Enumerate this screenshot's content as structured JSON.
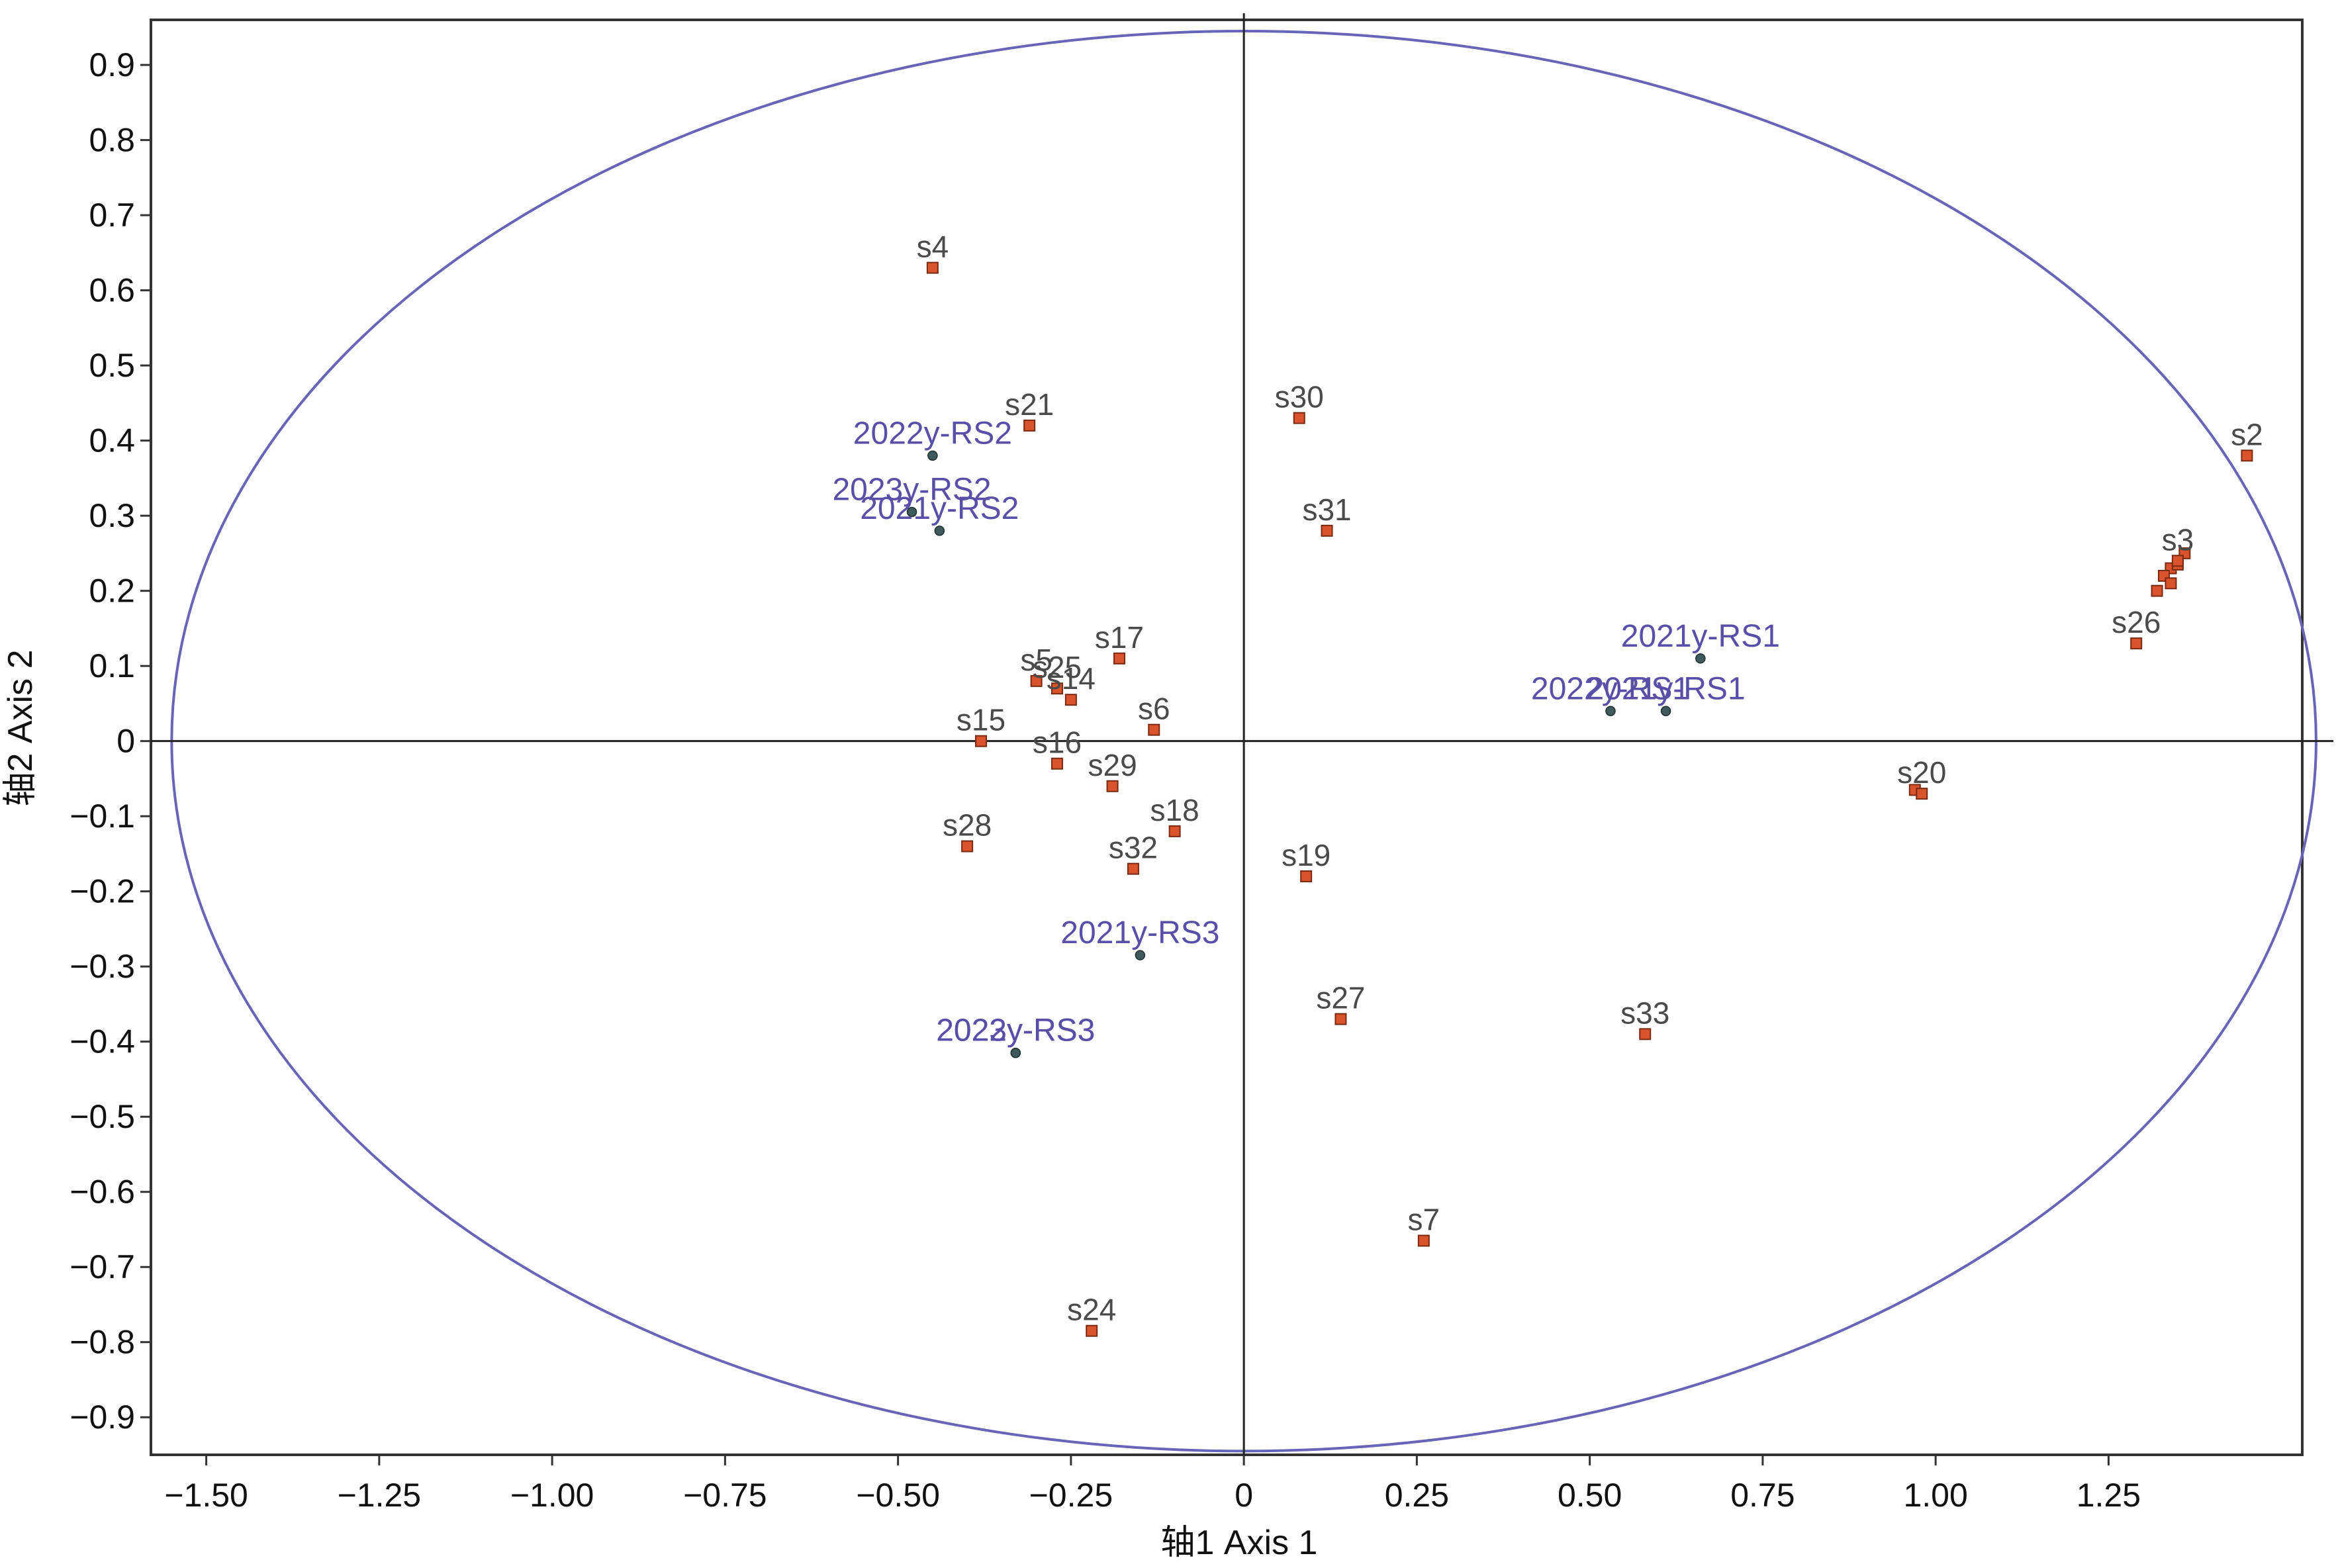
{
  "chart_data": {
    "type": "scatter",
    "title": "",
    "xlabel": "轴1 Axis 1",
    "ylabel": "轴2 Axis 2",
    "xlim": [
      -1.58,
      1.53
    ],
    "ylim": [
      -0.95,
      0.96
    ],
    "xticks": [
      -1.5,
      -1.25,
      -1.0,
      -0.75,
      -0.5,
      -0.25,
      0,
      0.25,
      0.5,
      0.75,
      1.0,
      1.25
    ],
    "xtick_labels": [
      "−1.50",
      "−1.25",
      "−1.00",
      "−0.75",
      "−0.50",
      "−0.25",
      "0",
      "0.25",
      "0.50",
      "0.75",
      "1.00",
      "1.25"
    ],
    "yticks": [
      0.9,
      0.8,
      0.7,
      0.6,
      0.5,
      0.4,
      0.3,
      0.2,
      0.1,
      0,
      -0.1,
      -0.2,
      -0.3,
      -0.4,
      -0.5,
      -0.6,
      -0.7,
      -0.8,
      -0.9
    ],
    "ytick_labels": [
      "0.9",
      "0.8",
      "0.7",
      "0.6",
      "0.5",
      "0.4",
      "0.3",
      "0.2",
      "0.1",
      "0",
      "−0.1",
      "−0.2",
      "−0.3",
      "−0.4",
      "−0.5",
      "−0.6",
      "−0.7",
      "−0.8",
      "−0.9"
    ],
    "grid": false,
    "ellipse": {
      "cx": 0,
      "cy": 0,
      "rx": 1.55,
      "ry": 0.945
    },
    "colors": {
      "sample_marker": "#d9532c",
      "sample_stroke": "#7a2a12",
      "variable_marker": "#3e5a5a",
      "variable_label": "#5a4fa8",
      "ellipse": "#6a64b8",
      "axis": "#222222"
    },
    "samples": [
      {
        "label": "s2",
        "x": 1.45,
        "y": 0.38
      },
      {
        "label": "s3",
        "x": 1.35,
        "y": 0.24
      },
      {
        "label": "s26",
        "x": 1.29,
        "y": 0.13
      },
      {
        "label": "s4",
        "x": -0.45,
        "y": 0.63
      },
      {
        "label": "s21",
        "x": -0.31,
        "y": 0.42
      },
      {
        "label": "s30",
        "x": 0.08,
        "y": 0.43
      },
      {
        "label": "s31",
        "x": 0.12,
        "y": 0.28
      },
      {
        "label": "s17",
        "x": -0.18,
        "y": 0.11
      },
      {
        "label": "s5",
        "x": -0.3,
        "y": 0.08
      },
      {
        "label": "s25",
        "x": -0.27,
        "y": 0.07
      },
      {
        "label": "s14",
        "x": -0.25,
        "y": 0.055
      },
      {
        "label": "s6",
        "x": -0.13,
        "y": 0.015
      },
      {
        "label": "s15",
        "x": -0.38,
        "y": 0.0
      },
      {
        "label": "s16",
        "x": -0.27,
        "y": -0.03
      },
      {
        "label": "s29",
        "x": -0.19,
        "y": -0.06
      },
      {
        "label": "s18",
        "x": -0.1,
        "y": -0.12
      },
      {
        "label": "s32",
        "x": -0.16,
        "y": -0.17
      },
      {
        "label": "s28",
        "x": -0.4,
        "y": -0.14
      },
      {
        "label": "s19",
        "x": 0.09,
        "y": -0.18
      },
      {
        "label": "s27",
        "x": 0.14,
        "y": -0.37
      },
      {
        "label": "s33",
        "x": 0.58,
        "y": -0.39
      },
      {
        "label": "s7",
        "x": 0.26,
        "y": -0.665
      },
      {
        "label": "s24",
        "x": -0.22,
        "y": -0.785
      },
      {
        "label": "s20",
        "x": 0.98,
        "y": -0.07
      }
    ],
    "cluster_extra_points": [
      {
        "x": 1.34,
        "y": 0.23
      },
      {
        "x": 1.36,
        "y": 0.25
      },
      {
        "x": 1.33,
        "y": 0.22
      },
      {
        "x": 1.34,
        "y": 0.21
      },
      {
        "x": 1.35,
        "y": 0.235
      },
      {
        "x": 1.32,
        "y": 0.2
      },
      {
        "x": 0.97,
        "y": -0.065
      }
    ],
    "variables": [
      {
        "label": "2021y-RS1",
        "x": 0.66,
        "y": 0.11
      },
      {
        "label": "2022y-RS1",
        "x": 0.53,
        "y": 0.04
      },
      {
        "label": "2021y-RS1",
        "x": 0.61,
        "y": 0.04
      },
      {
        "label": "2022y-RS2",
        "x": -0.45,
        "y": 0.38
      },
      {
        "label": "2023y-RS2",
        "x": -0.48,
        "y": 0.305
      },
      {
        "label": "2021y-RS2",
        "x": -0.44,
        "y": 0.28
      },
      {
        "label": "2021y-RS3",
        "x": -0.15,
        "y": -0.285
      },
      {
        "label": "2022y-RS3",
        "x": -0.33,
        "y": -0.415
      },
      {
        "label": "2023y-RS3",
        "x": -0.33,
        "y": -0.415
      }
    ]
  }
}
